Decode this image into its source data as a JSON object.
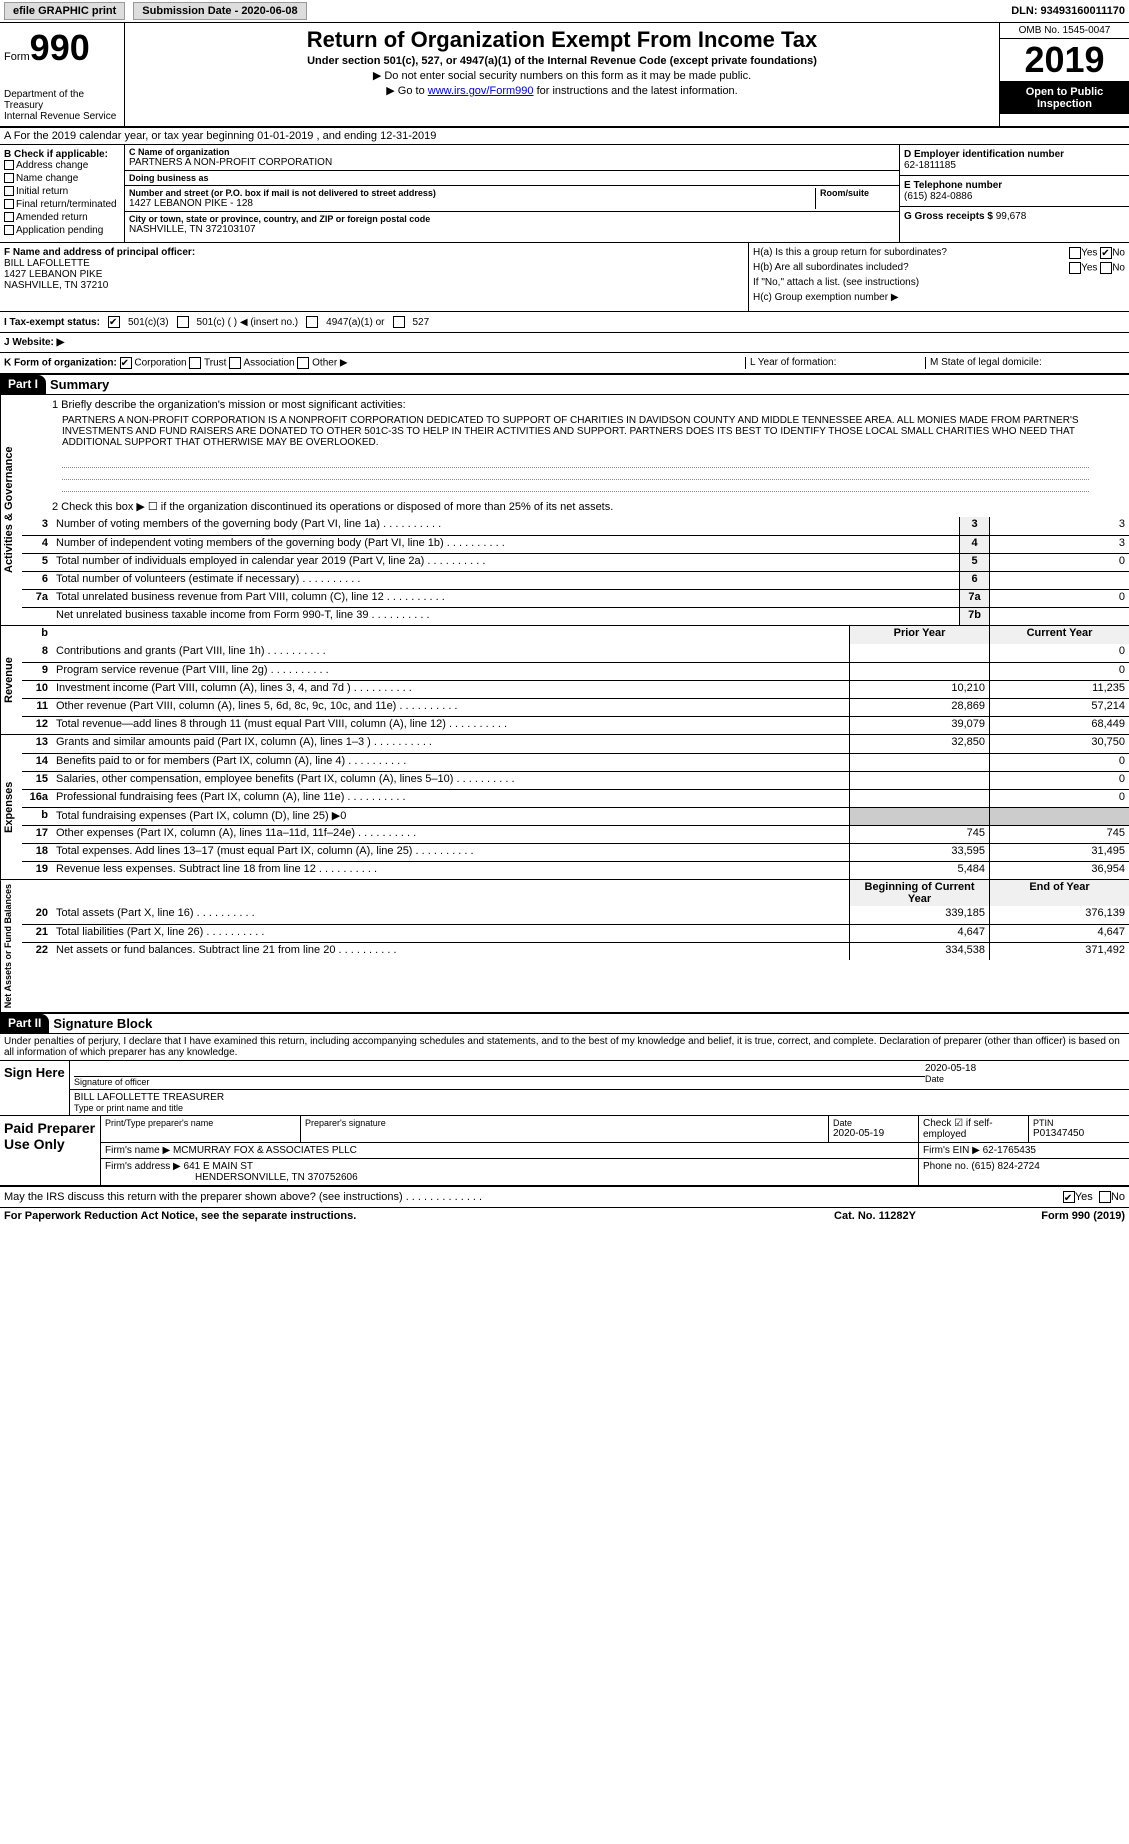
{
  "topbar": {
    "efile": "efile GRAPHIC print",
    "submission_label": "Submission Date - 2020-06-08",
    "dln": "DLN: 93493160011170"
  },
  "header": {
    "form_label": "Form",
    "form_num": "990",
    "dept": "Department of the Treasury\nInternal Revenue Service",
    "title": "Return of Organization Exempt From Income Tax",
    "subtitle": "Under section 501(c), 527, or 4947(a)(1) of the Internal Revenue Code (except private foundations)",
    "note1": "▶ Do not enter social security numbers on this form as it may be made public.",
    "note2_pre": "▶ Go to ",
    "note2_link": "www.irs.gov/Form990",
    "note2_post": " for instructions and the latest information.",
    "omb": "OMB No. 1545-0047",
    "year": "2019",
    "inspect": "Open to Public Inspection"
  },
  "row_a": "A For the 2019 calendar year, or tax year beginning 01-01-2019   , and ending 12-31-2019",
  "section_b": {
    "label": "B Check if applicable:",
    "items": [
      "Address change",
      "Name change",
      "Initial return",
      "Final return/terminated",
      "Amended return",
      "Application pending"
    ]
  },
  "section_c": {
    "name_label": "C Name of organization",
    "name": "PARTNERS A NON-PROFIT CORPORATION",
    "dba_label": "Doing business as",
    "dba": "",
    "addr_label": "Number and street (or P.O. box if mail is not delivered to street address)",
    "room_label": "Room/suite",
    "addr": "1427 LEBANON PIKE - 128",
    "city_label": "City or town, state or province, country, and ZIP or foreign postal code",
    "city": "NASHVILLE, TN  372103107"
  },
  "section_deg": {
    "d_label": "D Employer identification number",
    "d_val": "62-1811185",
    "e_label": "E Telephone number",
    "e_val": "(615) 824-0886",
    "g_label": "G Gross receipts $",
    "g_val": "99,678"
  },
  "section_f": {
    "label": "F  Name and address of principal officer:",
    "name": "BILL LAFOLLETTE",
    "addr1": "1427 LEBANON PIKE",
    "addr2": "NASHVILLE, TN  37210"
  },
  "section_h": {
    "ha": "H(a)  Is this a group return for subordinates?",
    "hb": "H(b)  Are all subordinates included?",
    "hb_note": "If \"No,\" attach a list. (see instructions)",
    "hc": "H(c)  Group exemption number ▶",
    "yes": "Yes",
    "no": "No"
  },
  "line_i": {
    "label": "I  Tax-exempt status:",
    "opts": [
      "501(c)(3)",
      "501(c) (  ) ◀ (insert no.)",
      "4947(a)(1) or",
      "527"
    ]
  },
  "line_j": {
    "label": "J  Website: ▶"
  },
  "line_k": {
    "label": "K Form of organization:",
    "opts": [
      "Corporation",
      "Trust",
      "Association",
      "Other ▶"
    ],
    "l_label": "L Year of formation:",
    "m_label": "M State of legal domicile:"
  },
  "part1": {
    "hdr": "Part I",
    "title": "Summary",
    "line1_label": "1  Briefly describe the organization's mission or most significant activities:",
    "mission": "PARTNERS A NON-PROFIT CORPORATION IS A NONPROFIT CORPORATION DEDICATED TO SUPPORT OF CHARITIES IN DAVIDSON COUNTY AND MIDDLE TENNESSEE AREA. ALL MONIES MADE FROM PARTNER'S INVESTMENTS AND FUND RAISERS ARE DONATED TO OTHER 501C-3S TO HELP IN THEIR ACTIVITIES AND SUPPORT. PARTNERS DOES ITS BEST TO IDENTIFY THOSE LOCAL SMALL CHARITIES WHO NEED THAT ADDITIONAL SUPPORT THAT OTHERWISE MAY BE OVERLOOKED.",
    "line2": "2   Check this box ▶ ☐ if the organization discontinued its operations or disposed of more than 25% of its net assets.",
    "governance": [
      {
        "n": "3",
        "d": "Number of voting members of the governing body (Part VI, line 1a)",
        "b": "3",
        "v": "3"
      },
      {
        "n": "4",
        "d": "Number of independent voting members of the governing body (Part VI, line 1b)",
        "b": "4",
        "v": "3"
      },
      {
        "n": "5",
        "d": "Total number of individuals employed in calendar year 2019 (Part V, line 2a)",
        "b": "5",
        "v": "0"
      },
      {
        "n": "6",
        "d": "Total number of volunteers (estimate if necessary)",
        "b": "6",
        "v": ""
      },
      {
        "n": "7a",
        "d": "Total unrelated business revenue from Part VIII, column (C), line 12",
        "b": "7a",
        "v": "0"
      },
      {
        "n": "",
        "d": "Net unrelated business taxable income from Form 990-T, line 39",
        "b": "7b",
        "v": ""
      }
    ],
    "prior_label": "Prior Year",
    "current_label": "Current Year",
    "revenue": [
      {
        "n": "8",
        "d": "Contributions and grants (Part VIII, line 1h)",
        "p": "",
        "c": "0"
      },
      {
        "n": "9",
        "d": "Program service revenue (Part VIII, line 2g)",
        "p": "",
        "c": "0"
      },
      {
        "n": "10",
        "d": "Investment income (Part VIII, column (A), lines 3, 4, and 7d )",
        "p": "10,210",
        "c": "11,235"
      },
      {
        "n": "11",
        "d": "Other revenue (Part VIII, column (A), lines 5, 6d, 8c, 9c, 10c, and 11e)",
        "p": "28,869",
        "c": "57,214"
      },
      {
        "n": "12",
        "d": "Total revenue—add lines 8 through 11 (must equal Part VIII, column (A), line 12)",
        "p": "39,079",
        "c": "68,449"
      }
    ],
    "expenses": [
      {
        "n": "13",
        "d": "Grants and similar amounts paid (Part IX, column (A), lines 1–3 )",
        "p": "32,850",
        "c": "30,750"
      },
      {
        "n": "14",
        "d": "Benefits paid to or for members (Part IX, column (A), line 4)",
        "p": "",
        "c": "0"
      },
      {
        "n": "15",
        "d": "Salaries, other compensation, employee benefits (Part IX, column (A), lines 5–10)",
        "p": "",
        "c": "0"
      },
      {
        "n": "16a",
        "d": "Professional fundraising fees (Part IX, column (A), line 11e)",
        "p": "",
        "c": "0"
      },
      {
        "n": "b",
        "d": "Total fundraising expenses (Part IX, column (D), line 25) ▶0",
        "p": "",
        "c": "",
        "gray": true
      },
      {
        "n": "17",
        "d": "Other expenses (Part IX, column (A), lines 11a–11d, 11f–24e)",
        "p": "745",
        "c": "745"
      },
      {
        "n": "18",
        "d": "Total expenses. Add lines 13–17 (must equal Part IX, column (A), line 25)",
        "p": "33,595",
        "c": "31,495"
      },
      {
        "n": "19",
        "d": "Revenue less expenses. Subtract line 18 from line 12",
        "p": "5,484",
        "c": "36,954"
      }
    ],
    "begin_label": "Beginning of Current Year",
    "end_label": "End of Year",
    "netassets": [
      {
        "n": "20",
        "d": "Total assets (Part X, line 16)",
        "p": "339,185",
        "c": "376,139"
      },
      {
        "n": "21",
        "d": "Total liabilities (Part X, line 26)",
        "p": "4,647",
        "c": "4,647"
      },
      {
        "n": "22",
        "d": "Net assets or fund balances. Subtract line 21 from line 20",
        "p": "334,538",
        "c": "371,492"
      }
    ]
  },
  "part2": {
    "hdr": "Part II",
    "title": "Signature Block",
    "declaration": "Under penalties of perjury, I declare that I have examined this return, including accompanying schedules and statements, and to the best of my knowledge and belief, it is true, correct, and complete. Declaration of preparer (other than officer) is based on all information of which preparer has any knowledge.",
    "sign_here": "Sign Here",
    "sig_officer": "Signature of officer",
    "sig_date": "2020-05-18",
    "date_label": "Date",
    "officer_name": "BILL LAFOLLETTE  TREASURER",
    "name_label": "Type or print name and title",
    "paid_label": "Paid Preparer Use Only",
    "prep_name_label": "Print/Type preparer's name",
    "prep_sig_label": "Preparer's signature",
    "prep_date_label": "Date",
    "prep_date": "2020-05-19",
    "check_self": "Check ☑ if self-employed",
    "ptin_label": "PTIN",
    "ptin": "P01347450",
    "firm_name_label": "Firm's name   ▶",
    "firm_name": "MCMURRAY FOX & ASSOCIATES PLLC",
    "firm_ein_label": "Firm's EIN ▶",
    "firm_ein": "62-1765435",
    "firm_addr_label": "Firm's address ▶",
    "firm_addr": "641 E MAIN ST",
    "firm_city": "HENDERSONVILLE, TN  370752606",
    "firm_phone_label": "Phone no.",
    "firm_phone": "(615) 824-2724"
  },
  "footer": {
    "q": "May the IRS discuss this return with the preparer shown above? (see instructions)",
    "yes": "Yes",
    "no": "No",
    "notice": "For Paperwork Reduction Act Notice, see the separate instructions.",
    "cat": "Cat. No. 11282Y",
    "form": "Form 990 (2019)"
  }
}
